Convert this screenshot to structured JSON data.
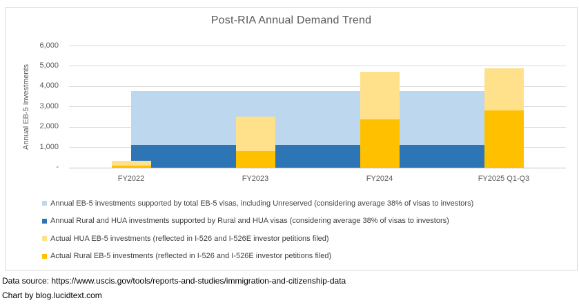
{
  "title": "Post-RIA Annual Demand Trend",
  "y_axis": {
    "title": "Annual EB-5 Investments",
    "ticks": [
      "6,000",
      "5,000",
      "4,000",
      "3,000",
      "2,000",
      "1,000",
      "-"
    ]
  },
  "x_axis": {
    "categories": [
      "FY2022",
      "FY2023",
      "FY2024",
      "FY2025 Q1-Q3"
    ]
  },
  "chart_data": {
    "type": "bar",
    "title": "Post-RIA Annual Demand Trend",
    "xlabel": "",
    "ylabel": "Annual EB-5 Investments",
    "ylim": [
      0,
      6000
    ],
    "ytick_interval": 1000,
    "grid": true,
    "legend_position": "bottom-left",
    "categories": [
      "FY2022",
      "FY2023",
      "FY2024",
      "FY2025 Q1-Q3"
    ],
    "series": [
      {
        "name": "Annual EB-5 investments supported by total EB-5 visas, including Unreserved (considering average 38% of visas to investors)",
        "color": "#BDD7EE",
        "style": "band",
        "values": [
          3750,
          3750,
          3750,
          3750
        ]
      },
      {
        "name": "Annual Rural and HUA investments supported by Rural and HUA visas (considering average 38% of visas to investors)",
        "color": "#2E75B6",
        "style": "band",
        "values": [
          1100,
          1100,
          1100,
          1100
        ]
      },
      {
        "name": "Actual HUA EB-5 investments (reflected in I-526 and I-526E investor petitions filed)",
        "color": "#FFE18C",
        "style": "stacked",
        "stack_level": 1,
        "values": [
          230,
          1700,
          2320,
          2070
        ]
      },
      {
        "name": "Actual Rural EB-5 investments (reflected in I-526 and I-526E investor petitions filed)",
        "color": "#FFC000",
        "style": "stacked",
        "stack_level": 0,
        "values": [
          95,
          800,
          2380,
          2820
        ]
      }
    ]
  },
  "footer": {
    "line1": "Data source: https://www.uscis.gov/tools/reports-and-studies/immigration-and-citizenship-data",
    "line2": "Chart by blog.lucidtext.com"
  }
}
